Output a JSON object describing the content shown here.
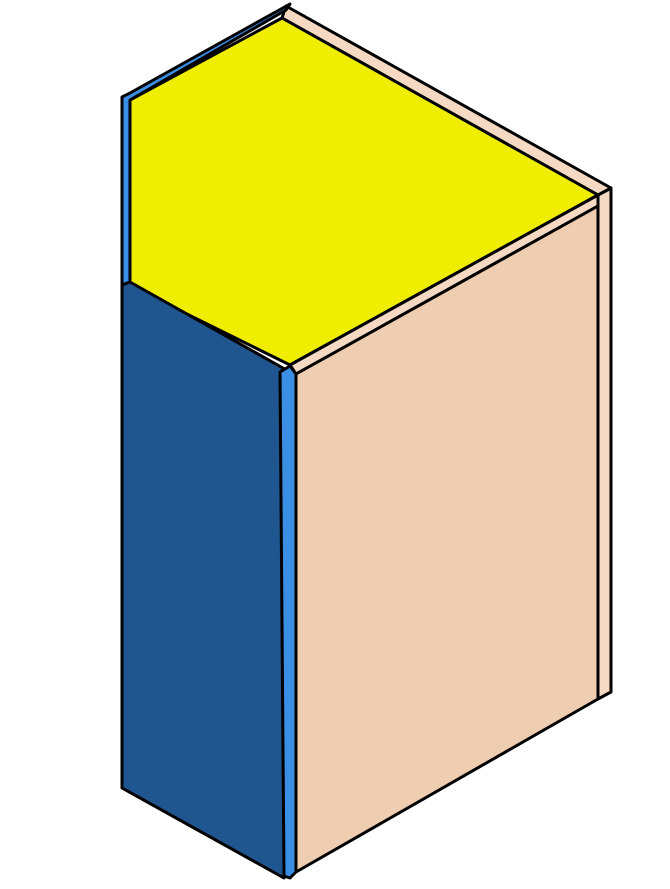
{
  "figure": {
    "kind": "isometric-box",
    "colors": {
      "background": "#ffffff",
      "top_face": "#f0ee00",
      "left_face": "#1f568f",
      "left_face_edge": "#3a8fe4",
      "front_face": "#efcdb0",
      "front_face_edge": "#f5d9c2",
      "outline": "#000000"
    }
  }
}
